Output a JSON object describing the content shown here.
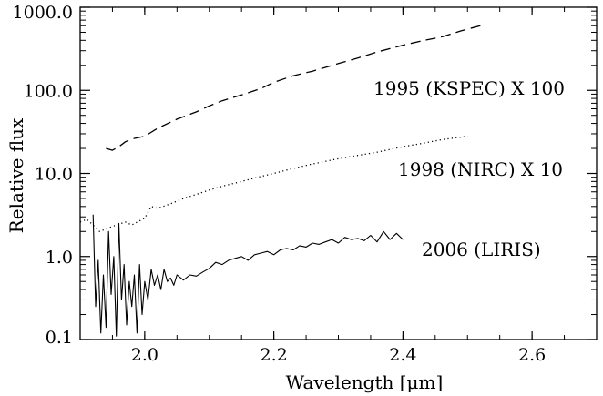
{
  "chart_data": {
    "type": "line",
    "title": "",
    "xlabel": "Wavelength [μm]",
    "ylabel": "Relative flux",
    "xlim": [
      1.9,
      2.7
    ],
    "ylim": [
      0.1,
      1000.0
    ],
    "yscale": "log",
    "grid": false,
    "x_ticks": [
      2.0,
      2.2,
      2.4,
      2.6
    ],
    "x_tick_labels": [
      "2.0",
      "2.2",
      "2.4",
      "2.6"
    ],
    "y_ticks": [
      0.1,
      1.0,
      10.0,
      100.0,
      1000.0
    ],
    "y_tick_labels": [
      "0.1",
      "1.0",
      "10.0",
      "100.0",
      "1000.0"
    ],
    "series": [
      {
        "name": "1995 (KSPEC) X 100",
        "line_style": "dashed",
        "color": "#000000",
        "x": [
          1.94,
          1.95,
          1.96,
          1.97,
          1.98,
          2.0,
          2.02,
          2.05,
          2.08,
          2.1,
          2.12,
          2.15,
          2.18,
          2.2,
          2.23,
          2.26,
          2.3,
          2.33,
          2.36,
          2.4,
          2.43,
          2.46,
          2.49,
          2.52
        ],
        "y": [
          20,
          19,
          21,
          24,
          26,
          28,
          35,
          45,
          55,
          65,
          75,
          88,
          105,
          125,
          150,
          170,
          210,
          245,
          290,
          350,
          395,
          440,
          520,
          600
        ]
      },
      {
        "name": "1998 (NIRC) X 10",
        "line_style": "dotted",
        "color": "#000000",
        "x": [
          1.9,
          1.91,
          1.92,
          1.93,
          1.95,
          1.97,
          1.98,
          2.0,
          2.01,
          2.02,
          2.04,
          2.06,
          2.08,
          2.1,
          2.12,
          2.15,
          2.18,
          2.2,
          2.23,
          2.26,
          2.3,
          2.33,
          2.36,
          2.4,
          2.43,
          2.46,
          2.5
        ],
        "y": [
          2.6,
          2.8,
          2.4,
          2.0,
          2.3,
          2.6,
          2.4,
          2.9,
          4.0,
          3.8,
          4.3,
          5.0,
          5.6,
          6.3,
          7.0,
          8.0,
          9.2,
          10.0,
          11.5,
          13.0,
          15.0,
          16.5,
          18.0,
          21.0,
          23.0,
          25.5,
          28.0
        ]
      },
      {
        "name": "2006 (LIRIS)",
        "line_style": "solid",
        "color": "#000000",
        "x": [
          1.92,
          1.924,
          1.928,
          1.932,
          1.936,
          1.94,
          1.944,
          1.948,
          1.952,
          1.956,
          1.96,
          1.964,
          1.968,
          1.972,
          1.976,
          1.98,
          1.984,
          1.988,
          1.992,
          1.996,
          2.0,
          2.005,
          2.01,
          2.015,
          2.02,
          2.025,
          2.03,
          2.035,
          2.04,
          2.045,
          2.05,
          2.06,
          2.07,
          2.08,
          2.09,
          2.1,
          2.11,
          2.12,
          2.13,
          2.14,
          2.15,
          2.16,
          2.17,
          2.18,
          2.19,
          2.2,
          2.21,
          2.22,
          2.23,
          2.24,
          2.25,
          2.26,
          2.27,
          2.28,
          2.29,
          2.3,
          2.31,
          2.32,
          2.33,
          2.34,
          2.35,
          2.36,
          2.37,
          2.38,
          2.39,
          2.4
        ],
        "y": [
          3.2,
          0.25,
          0.9,
          0.12,
          0.6,
          0.14,
          2.0,
          0.35,
          1.0,
          0.11,
          2.5,
          0.3,
          0.8,
          0.15,
          0.5,
          0.25,
          0.6,
          0.12,
          0.8,
          0.2,
          0.5,
          0.3,
          0.7,
          0.45,
          0.6,
          0.4,
          0.7,
          0.5,
          0.55,
          0.45,
          0.6,
          0.52,
          0.6,
          0.58,
          0.65,
          0.72,
          0.85,
          0.8,
          0.9,
          0.95,
          1.0,
          0.9,
          1.05,
          1.1,
          1.15,
          1.05,
          1.2,
          1.25,
          1.2,
          1.35,
          1.3,
          1.45,
          1.4,
          1.5,
          1.6,
          1.45,
          1.7,
          1.6,
          1.65,
          1.55,
          1.8,
          1.5,
          2.0,
          1.6,
          1.9,
          1.6
        ]
      }
    ]
  }
}
